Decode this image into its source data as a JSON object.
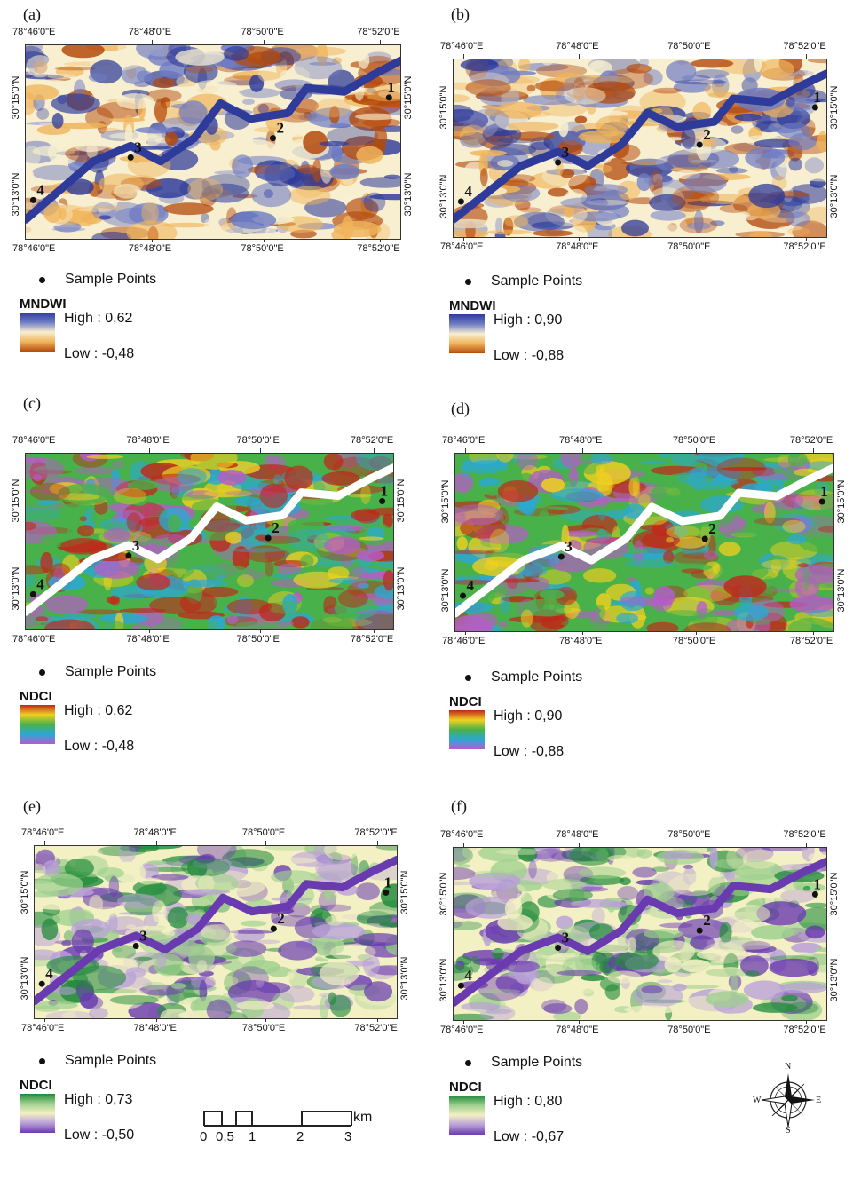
{
  "panels": [
    {
      "label": "(a)",
      "lon_ticks": [
        "78°46'0\"E",
        "78°48'0\"E",
        "78°50'0\"E",
        "78°52'0\"E"
      ],
      "lat_ticks": [
        "30°15'0\"N",
        "30°13'0\"N"
      ],
      "sample_label": "Sample Points",
      "index_name": "MNDWI",
      "high": "High : 0,62",
      "low": "Low : -0,48",
      "ramp": [
        "#2e3b9a",
        "#6f7cc4",
        "#f7efd0",
        "#f0b45a",
        "#b44a0c"
      ],
      "points": [
        "1",
        "2",
        "3",
        "4"
      ]
    },
    {
      "label": "(b)",
      "lon_ticks": [
        "78°46'0\"E",
        "78°48'0\"E",
        "78°50'0\"E",
        "78°52'0\"E"
      ],
      "lat_ticks": [
        "30°15'0\"N",
        "30°13'0\"N"
      ],
      "sample_label": "Sample Points",
      "index_name": "MNDWI",
      "high": "High : 0,90",
      "low": "Low : -0,88",
      "ramp": [
        "#2e3b9a",
        "#6f7cc4",
        "#f7efd0",
        "#f0b45a",
        "#b44a0c"
      ],
      "points": [
        "1",
        "2",
        "3",
        "4"
      ]
    },
    {
      "label": "(c)",
      "lon_ticks": [
        "78°46'0\"E",
        "78°48'0\"E",
        "78°50'0\"E",
        "78°52'0\"E"
      ],
      "lat_ticks": [
        "30°15'0\"N",
        "30°13'0\"N"
      ],
      "sample_label": "Sample Points",
      "index_name": "NDCI",
      "high": "High : 0,62",
      "low": "Low : -0,48",
      "ramp": [
        "#c0281a",
        "#f0d020",
        "#49b14a",
        "#2aa8d8",
        "#b65cc8"
      ],
      "points": [
        "1",
        "2",
        "3",
        "4"
      ]
    },
    {
      "label": "(d)",
      "lon_ticks": [
        "78°46'0\"E",
        "78°48'0\"E",
        "78°50'0\"E",
        "78°52'0\"E"
      ],
      "lat_ticks": [
        "30°15'0\"N",
        "30°13'0\"N"
      ],
      "sample_label": "Sample Points",
      "index_name": "NDCI",
      "high": "High : 0,90",
      "low": "Low : -0,88",
      "ramp": [
        "#c0281a",
        "#f0d020",
        "#49b14a",
        "#2aa8d8",
        "#b65cc8"
      ],
      "points": [
        "1",
        "2",
        "3",
        "4"
      ]
    },
    {
      "label": "(e)",
      "lon_ticks": [
        "78°46'0\"E",
        "78°48'0\"E",
        "78°50'0\"E",
        "78°52'0\"E"
      ],
      "lat_ticks": [
        "30°15'0\"N",
        "30°13'0\"N"
      ],
      "sample_label": "Sample Points",
      "index_name": "NDCI",
      "high": "High : 0,73",
      "low": "Low : -0,50",
      "ramp": [
        "#1f8a3a",
        "#9fd08e",
        "#f3f0c4",
        "#b9a0d8",
        "#6a3bb0"
      ],
      "points": [
        "1",
        "2",
        "3",
        "4"
      ]
    },
    {
      "label": "(f)",
      "lon_ticks": [
        "78°46'0\"E",
        "78°48'0\"E",
        "78°50'0\"E",
        "78°52'0\"E"
      ],
      "lat_ticks": [
        "30°15'0\"N",
        "30°13'0\"N"
      ],
      "sample_label": "Sample Points",
      "index_name": "NDCI",
      "high": "High : 0,80",
      "low": "Low : -0,67",
      "ramp": [
        "#1f8a3a",
        "#9fd08e",
        "#f3f0c4",
        "#b9a0d8",
        "#6a3bb0"
      ],
      "points": [
        "1",
        "2",
        "3",
        "4"
      ]
    }
  ],
  "scalebar": {
    "unit": "km",
    "ticks": [
      "0",
      "0,5",
      "1",
      "2",
      "3"
    ]
  },
  "compass": {
    "n": "N",
    "s": "S",
    "e": "E",
    "w": "W"
  }
}
